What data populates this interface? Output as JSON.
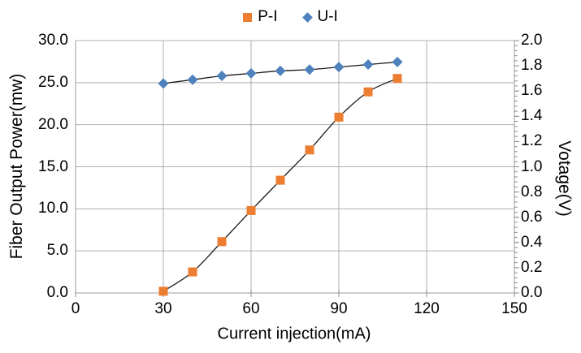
{
  "chart_data": {
    "type": "line",
    "title": "",
    "x": [
      30,
      40,
      50,
      60,
      70,
      80,
      90,
      100,
      110
    ],
    "series": [
      {
        "name": "P-I",
        "axis": "left",
        "marker": "square",
        "marker_color": "#ED7D31",
        "line_color": "#1A1A1A",
        "values": [
          0.2,
          2.5,
          6.1,
          9.8,
          13.4,
          17.0,
          20.9,
          23.9,
          25.5
        ]
      },
      {
        "name": "U-I",
        "axis": "right",
        "marker": "diamond",
        "marker_color": "#4F81BD",
        "line_color": "#1A1A1A",
        "values": [
          1.66,
          1.69,
          1.72,
          1.74,
          1.76,
          1.77,
          1.79,
          1.81,
          1.83
        ]
      }
    ],
    "x_axis": {
      "title": "Current injection(mA)",
      "range": [
        0,
        150
      ],
      "tick_values": [
        0,
        30,
        60,
        90,
        120,
        150
      ],
      "ticks": [
        "0",
        "30",
        "60",
        "90",
        "120",
        "150"
      ]
    },
    "y_axis_left": {
      "title": "Fiber Output Power(mw)",
      "range": [
        0,
        30
      ],
      "tick_values": [
        0,
        5,
        10,
        15,
        20,
        25,
        30
      ],
      "ticks": [
        "0.0",
        "5.0",
        "10.0",
        "15.0",
        "20.0",
        "25.0",
        "30.0"
      ]
    },
    "y_axis_right": {
      "title": "Votage(V)",
      "range": [
        0,
        2
      ],
      "tick_values": [
        0,
        0.2,
        0.4,
        0.6,
        0.8,
        1.0,
        1.2,
        1.4,
        1.6,
        1.8,
        2.0
      ],
      "ticks": [
        "0.0",
        "0.2",
        "0.4",
        "0.6",
        "0.8",
        "1.0",
        "1.2",
        "1.4",
        "1.6",
        "1.8",
        "2.0"
      ],
      "minor_tick_unit": 0.04
    },
    "grid": true,
    "legend_position": "top",
    "colors": {
      "gridline": "#AFAFAF",
      "axis_line": "#9E9E9E",
      "tick": "#8C8C8C",
      "text": "#000000",
      "background": "#FFFFFF"
    }
  }
}
